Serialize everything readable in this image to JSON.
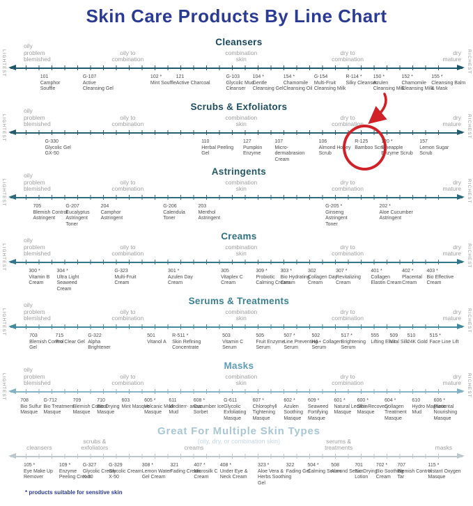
{
  "title": "Skin Care Products By Line Chart",
  "footnote": "* products suitable for sensitive skin",
  "colors": {
    "title_navy": "#2b3a93",
    "label_gray": "#9e9e9e",
    "product_text": "#4a4a4a",
    "annotation_red": "#cf2127"
  },
  "chart_data": {
    "type": "line",
    "title": "Skin Care Products By Line Chart",
    "xlabel": "skin type spectrum: oily problem blemished → dry mature",
    "axis_end_labels": {
      "left": "LIGHTEST",
      "right": "RICHEST"
    },
    "skin_labels": [
      {
        "text": "oily\nproblem\nblemished",
        "pos": 5,
        "align": "left"
      },
      {
        "text": "oily to\ncombination",
        "pos": 27,
        "align": "center"
      },
      {
        "text": "combination\nskin",
        "pos": 51,
        "align": "center"
      },
      {
        "text": "dry to\ncombination",
        "pos": 73.5,
        "align": "center"
      },
      {
        "text": "dry\nmature",
        "pos": 97.5,
        "align": "right"
      }
    ],
    "annotation": {
      "shape": "hand-drawn circle with curved arrow",
      "color": "#cf2127",
      "target_row": "Scrubs & Exfoliators",
      "target_product_code": "R-125",
      "target_product_name": "Bamboo Scrub"
    },
    "rows": [
      {
        "name": "Cleansers",
        "header_color": "#17465a",
        "line_color": "#1d5668",
        "side_labels": true,
        "products": [
          {
            "code": "101",
            "sensitive": false,
            "name": "Camphor Souffle",
            "pos": 8.5
          },
          {
            "code": "G-107",
            "sensitive": false,
            "name": "Active Cleansing Gel",
            "pos": 17.5
          },
          {
            "code": "102",
            "sensitive": true,
            "name": "Mint Souffle",
            "pos": 31.8
          },
          {
            "code": "121",
            "sensitive": false,
            "name": "Active Charcoal",
            "pos": 37.2
          },
          {
            "code": "G-103",
            "sensitive": false,
            "name": "Glycolic Mud Cleanser",
            "pos": 47.8
          },
          {
            "code": "104",
            "sensitive": true,
            "name": "Gentle Cleansing Gel",
            "pos": 53.4
          },
          {
            "code": "154",
            "sensitive": true,
            "name": "Chamomile Cleansing Oil",
            "pos": 59.9
          },
          {
            "code": "G-154",
            "sensitive": false,
            "name": "Multi-Fruit Cleansing Milk",
            "pos": 66.4
          },
          {
            "code": "R-114",
            "sensitive": true,
            "name": "Silky Cleanser",
            "pos": 73.1
          },
          {
            "code": "150",
            "sensitive": true,
            "name": "Azulen Cleansing Milk",
            "pos": 78.9
          },
          {
            "code": "152",
            "sensitive": true,
            "name": "Chamomile Cleansing Milk",
            "pos": 84.9
          },
          {
            "code": "155",
            "sensitive": true,
            "name": "Cleansing Balm & Mask",
            "pos": 91.2
          }
        ]
      },
      {
        "name": "Scrubs & Exfoliators",
        "header_color": "#1c4c5f",
        "line_color": "#235d6f",
        "side_labels": true,
        "products": [
          {
            "code": "G-330",
            "sensitive": false,
            "name": "Glycolic Gel GX-50",
            "pos": 9.5
          },
          {
            "code": "110",
            "sensitive": false,
            "name": "Herbal Peeling Gel",
            "pos": 42.6
          },
          {
            "code": "127",
            "sensitive": false,
            "name": "Pumpkin Enzyme",
            "pos": 51.4
          },
          {
            "code": "107",
            "sensitive": false,
            "name": "Micro-dermabrasion Cream",
            "pos": 58.1
          },
          {
            "code": "106",
            "sensitive": false,
            "name": "Almond Honey Scrub",
            "pos": 67.4
          },
          {
            "code": "R-125",
            "sensitive": false,
            "name": "Bamboo Scrub",
            "pos": 75.0
          },
          {
            "code": "120",
            "sensitive": true,
            "name": "Pineapple Enzyme Scrub",
            "pos": 80.6
          },
          {
            "code": "157",
            "sensitive": false,
            "name": "Lemon Sugar Scrub",
            "pos": 88.7
          }
        ]
      },
      {
        "name": "Astringents",
        "header_color": "#225866",
        "line_color": "#2c6b7d",
        "side_labels": true,
        "products": [
          {
            "code": "705",
            "sensitive": false,
            "name": "Blemish Control Astringent",
            "pos": 7.0
          },
          {
            "code": "G-207",
            "sensitive": false,
            "name": "Eucalyptus Astringent Toner",
            "pos": 13.9
          },
          {
            "code": "204",
            "sensitive": false,
            "name": "Camphor Astringent",
            "pos": 21.3
          },
          {
            "code": "G-206",
            "sensitive": false,
            "name": "Calendula Toner",
            "pos": 34.5
          },
          {
            "code": "203",
            "sensitive": false,
            "name": "Menthol Astringent",
            "pos": 41.9
          },
          {
            "code": "G-205",
            "sensitive": true,
            "name": "Ginseng Astringent Toner",
            "pos": 68.8
          },
          {
            "code": "202",
            "sensitive": true,
            "name": "Aloe Cucumber Astringent",
            "pos": 80.2
          }
        ]
      },
      {
        "name": "Creams",
        "header_color": "#2c7081",
        "line_color": "#337689",
        "side_labels": true,
        "products": [
          {
            "code": "300",
            "sensitive": true,
            "name": "Vitamin B Cream",
            "pos": 6.1
          },
          {
            "code": "304",
            "sensitive": true,
            "name": "Ultra Light Seaweed Cream",
            "pos": 12.0
          },
          {
            "code": "G-323",
            "sensitive": false,
            "name": "Multi-Fruit Cream",
            "pos": 24.2
          },
          {
            "code": "301",
            "sensitive": true,
            "name": "Azulen Day Cream",
            "pos": 35.5
          },
          {
            "code": "305",
            "sensitive": false,
            "name": "Vitaplex C Cream",
            "pos": 46.7
          },
          {
            "code": "309",
            "sensitive": true,
            "name": "Probiotic Calming Cream",
            "pos": 54.1
          },
          {
            "code": "303",
            "sensitive": true,
            "name": "Bio Hydrating Cream",
            "pos": 59.3
          },
          {
            "code": "302",
            "sensitive": false,
            "name": "Collagen Day Cream",
            "pos": 65.1
          },
          {
            "code": "307",
            "sensitive": true,
            "name": "Revitalizing Cream",
            "pos": 71.0
          },
          {
            "code": "401",
            "sensitive": true,
            "name": "Collagen Elastin Cream",
            "pos": 78.4
          },
          {
            "code": "402",
            "sensitive": true,
            "name": "Placental Cream",
            "pos": 85.0
          },
          {
            "code": "403",
            "sensitive": true,
            "name": "Bio Effective Cream",
            "pos": 90.2
          }
        ]
      },
      {
        "name": "Serums & Treatments",
        "header_color": "#3a8092",
        "line_color": "#418b9d",
        "side_labels": true,
        "products": [
          {
            "code": "703",
            "sensitive": false,
            "name": "Blemish Control Gel",
            "pos": 6.2
          },
          {
            "code": "715",
            "sensitive": false,
            "name": "Pro Clear Gel",
            "pos": 11.7
          },
          {
            "code": "G-322",
            "sensitive": false,
            "name": "Alpha Brightener",
            "pos": 18.6
          },
          {
            "code": "501",
            "sensitive": false,
            "name": "Vitanol A",
            "pos": 31.1
          },
          {
            "code": "R-511",
            "sensitive": true,
            "name": "Skin Refining Concentrate",
            "pos": 36.4
          },
          {
            "code": "503",
            "sensitive": false,
            "name": "Vitamin C Serum",
            "pos": 47.0
          },
          {
            "code": "505",
            "sensitive": false,
            "name": "Fruit Enzyme Serum",
            "pos": 54.1
          },
          {
            "code": "507",
            "sensitive": true,
            "name": "Line Preventing Serum",
            "pos": 60.0
          },
          {
            "code": "502",
            "sensitive": false,
            "name": "HA+ Collagen Serum",
            "pos": 65.9
          },
          {
            "code": "517",
            "sensitive": true,
            "name": "Brightening Serum",
            "pos": 72.1
          },
          {
            "code": "555",
            "sensitive": false,
            "name": "Lifting Elixir",
            "pos": 78.4
          },
          {
            "code": "509",
            "sensitive": false,
            "name": "Vital Silk",
            "pos": 82.4
          },
          {
            "code": "510",
            "sensitive": false,
            "name": "24K Gold",
            "pos": 86.1
          },
          {
            "code": "515",
            "sensitive": true,
            "name": "Face Line Lift",
            "pos": 90.8
          }
        ]
      },
      {
        "name": "Masks",
        "header_color": "#5d9cba",
        "line_color": "#83b2c2",
        "side_labels": true,
        "products": [
          {
            "code": "708",
            "sensitive": false,
            "name": "Bio Sulfur Masque",
            "pos": 4.3
          },
          {
            "code": "G-712",
            "sensitive": false,
            "name": "Bio Treatment Masque",
            "pos": 9.2
          },
          {
            "code": "709",
            "sensitive": false,
            "name": "Blemish Control Masque",
            "pos": 15.4
          },
          {
            "code": "710",
            "sensitive": false,
            "name": "Bio Drying Masque",
            "pos": 20.5
          },
          {
            "code": "603",
            "sensitive": false,
            "name": "Mint Masque",
            "pos": 25.7
          },
          {
            "code": "605",
            "sensitive": true,
            "name": "Volcanic Mud Masque",
            "pos": 30.5
          },
          {
            "code": "611",
            "sensitive": false,
            "name": "Mediterr- anean Mud",
            "pos": 35.7
          },
          {
            "code": "608",
            "sensitive": true,
            "name": "Cucumber Ice Sorbet",
            "pos": 40.9
          },
          {
            "code": "G-611",
            "sensitive": false,
            "name": "Glycolic Exfoliating Masque",
            "pos": 47.3
          },
          {
            "code": "607",
            "sensitive": true,
            "name": "Chlorophyll Tightening Masque",
            "pos": 53.4
          },
          {
            "code": "602",
            "sensitive": true,
            "name": "Azulen Soothing Masque",
            "pos": 60.0
          },
          {
            "code": "609",
            "sensitive": true,
            "name": "Seaweed Fortifying Masque",
            "pos": 65.1
          },
          {
            "code": "601",
            "sensitive": true,
            "name": "Natural Lecithin Masque",
            "pos": 70.6
          },
          {
            "code": "600",
            "sensitive": true,
            "name": "Skin Recovery Masque",
            "pos": 75.5
          },
          {
            "code": "604",
            "sensitive": true,
            "name": "Collagen Treatment Masque",
            "pos": 81.3
          },
          {
            "code": "610",
            "sensitive": false,
            "name": "Hydro Magnetic Mud",
            "pos": 87.1
          },
          {
            "code": "606",
            "sensitive": true,
            "name": "Placental Nourishing Masque",
            "pos": 91.7
          }
        ]
      },
      {
        "name": "Great For Multiple Skin Types",
        "subtitle": "(oily, dry, or combination skin)",
        "header_color": "#a9c6d6",
        "subtitle_color": "#c4d8e2",
        "line_color": "#bcc8cd",
        "side_labels": false,
        "big_header": true,
        "labels": [
          {
            "text": "cleansers",
            "pos": 8.3,
            "align": "center"
          },
          {
            "text": "scrubs &\nexfoliators",
            "pos": 20,
            "align": "center"
          },
          {
            "text": "creams",
            "pos": 41,
            "align": "center"
          },
          {
            "text": "serums &\ntreatments",
            "pos": 71.6,
            "align": "center"
          },
          {
            "text": "masks",
            "pos": 93.8,
            "align": "center"
          }
        ],
        "products": [
          {
            "code": "105",
            "sensitive": true,
            "name": "Eye Make Up Remover",
            "pos": 5.0
          },
          {
            "code": "109",
            "sensitive": true,
            "name": "Enzyme Peeling Cream",
            "pos": 12.5
          },
          {
            "code": "G-327",
            "sensitive": false,
            "name": "Glycolic Cream X-30",
            "pos": 17.5
          },
          {
            "code": "G-329",
            "sensitive": false,
            "name": "Glycolic Cream X-50",
            "pos": 23.0
          },
          {
            "code": "308",
            "sensitive": true,
            "name": "Lemon Water Gel Cream",
            "pos": 30.0
          },
          {
            "code": "321",
            "sensitive": false,
            "name": "Fading Cream",
            "pos": 36.0
          },
          {
            "code": "407",
            "sensitive": true,
            "name": "Microsilk C Cream",
            "pos": 41.0
          },
          {
            "code": "408",
            "sensitive": true,
            "name": "Under Eye & Neck Cream",
            "pos": 46.5
          },
          {
            "code": "323",
            "sensitive": true,
            "name": "Aloe Vera & Herbs Soothing Gel",
            "pos": 54.5
          },
          {
            "code": "322",
            "sensitive": false,
            "name": "Fading Gel",
            "pos": 60.5
          },
          {
            "code": "504",
            "sensitive": true,
            "name": "Calming Serum",
            "pos": 65.0
          },
          {
            "code": "508",
            "sensitive": false,
            "name": "Almond Serum",
            "pos": 70.0
          },
          {
            "code": "701",
            "sensitive": false,
            "name": "Bio Drying Lotion",
            "pos": 75.0
          },
          {
            "code": "702",
            "sensitive": true,
            "name": "Bio Soothing Cream",
            "pos": 79.5
          },
          {
            "code": "707",
            "sensitive": false,
            "name": "Blemish Control Tar",
            "pos": 84.0
          },
          {
            "code": "115",
            "sensitive": true,
            "name": "Instant Oxygen Masque",
            "pos": 90.5
          }
        ]
      }
    ]
  }
}
